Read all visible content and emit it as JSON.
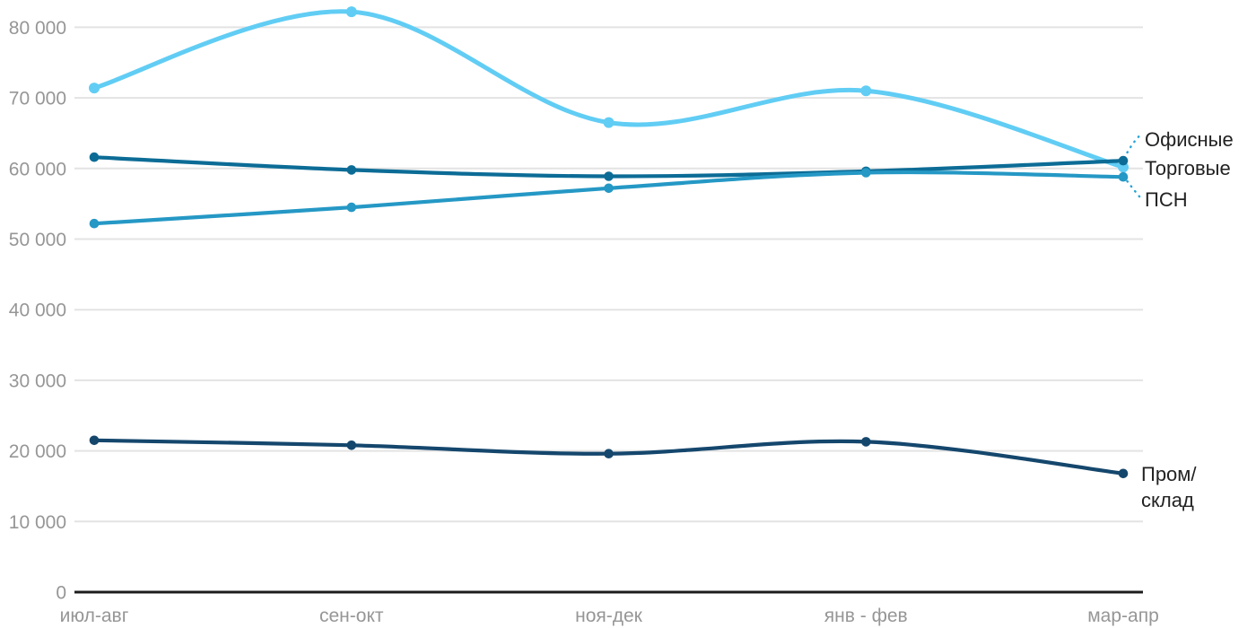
{
  "chart_data": {
    "type": "line",
    "title": "",
    "xlabel": "",
    "ylabel": "",
    "categories": [
      "июл-авг",
      "сен-окт",
      "ноя-дек",
      "янв - фев",
      "мар-апр"
    ],
    "series": [
      {
        "name": "Офисные",
        "color": "#0c6c96",
        "values": [
          61600,
          59800,
          58900,
          59600,
          61100
        ]
      },
      {
        "name": "Торговые",
        "color": "#61cdf4",
        "values": [
          71400,
          82200,
          66500,
          71000,
          60200
        ]
      },
      {
        "name": "ПСН",
        "color": "#2598c5",
        "values": [
          52200,
          54500,
          57200,
          59400,
          58800
        ]
      },
      {
        "name": "Пром/склад",
        "color": "#15476d",
        "values": [
          21500,
          20800,
          19600,
          21300,
          16800
        ]
      }
    ],
    "ylim": [
      0,
      85000
    ],
    "yticks": [
      0,
      10000,
      20000,
      30000,
      40000,
      50000,
      60000,
      70000,
      80000
    ],
    "ytick_labels": [
      "0",
      "10 000",
      "20 000",
      "30 000",
      "40 000",
      "50 000",
      "60 000",
      "70 000",
      "80 000"
    ],
    "grid": "horizontal",
    "legend_position": "right-end-labels",
    "axis_color": "#1c1c1c",
    "grid_color": "#e3e3e3",
    "tick_color": "#969696",
    "leader_color": "#2aa3d6",
    "end_label_color": "#222222"
  },
  "end_labels": [
    {
      "text": "Офисные"
    },
    {
      "text": "Торговые"
    },
    {
      "text": "ПСН"
    },
    {
      "lines": [
        "Пром/",
        "склад"
      ]
    }
  ]
}
